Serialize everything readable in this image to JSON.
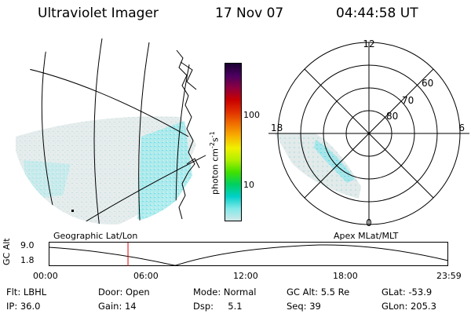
{
  "header": {
    "instrument": "Ultraviolet Imager",
    "date": "17 Nov 07",
    "time": "04:44:58 UT"
  },
  "colorbar": {
    "unit_label": "photon cm",
    "unit_sup1": "-2",
    "unit_mid": "s",
    "unit_sup2": "-1",
    "tick_labels": [
      "100",
      "10"
    ],
    "colors": [
      "#1a0030",
      "#4b0060",
      "#8b0040",
      "#c80000",
      "#e03000",
      "#f07000",
      "#f8b000",
      "#f0f000",
      "#b0f000",
      "#40e000",
      "#00d060",
      "#00d0c8",
      "#80e8e8",
      "#d0e8e8"
    ]
  },
  "polar": {
    "mlt_labels": [
      "12",
      "18",
      "6",
      "0"
    ],
    "lat_labels": [
      "60",
      "70",
      "80"
    ]
  },
  "projections": {
    "left": "Geographic Lat/Lon",
    "right": "Apex MLat/MLT"
  },
  "altitude_plot": {
    "ylabel": "GC Alt",
    "yticks": [
      "9.0",
      "1.8"
    ],
    "xticks": [
      "00:00",
      "06:00",
      "12:00",
      "18:00",
      "23:59"
    ],
    "marker_time_hours": 4.75,
    "colors": {
      "marker": "#dd0000",
      "curve": "#000000"
    }
  },
  "info": {
    "row1": [
      "Flt: LBHL",
      "Door: Open",
      "Mode: Normal",
      "GC Alt: 5.5 Re",
      "GLat: -53.9"
    ],
    "row2": [
      "IP: 36.0",
      "Gain: 14",
      "Dsp:     5.1",
      "Seq: 39",
      "GLon: 205.3"
    ]
  }
}
